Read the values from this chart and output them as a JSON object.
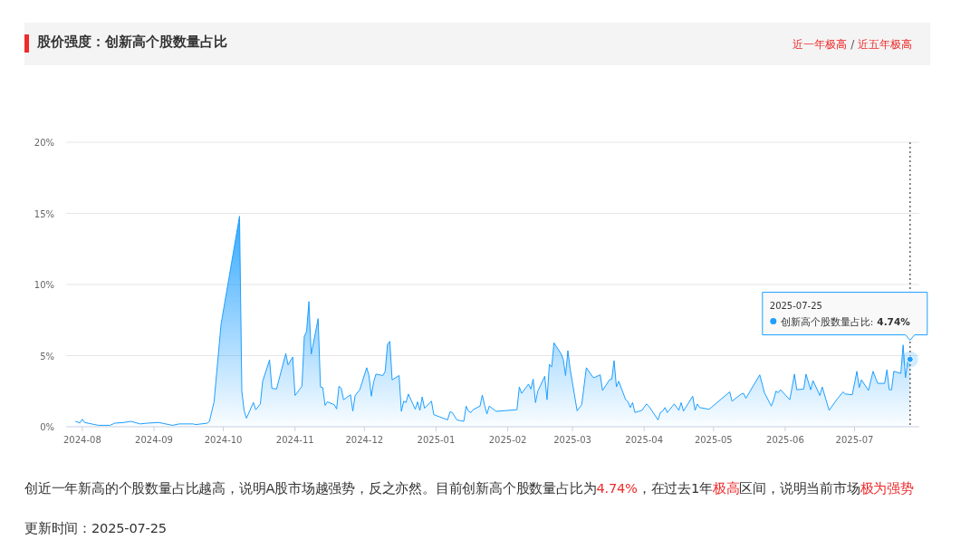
{
  "chart_data": {
    "type": "area",
    "title": "股价强度：创新高个股数量占比",
    "subtitle": "**近一年极高** / **近五年极高**",
    "x": [
      "2024-07-29",
      "2024-07-31",
      "2024-08-01",
      "2024-08-02",
      "2024-08-05",
      "2024-08-08",
      "2024-08-13",
      "2024-08-15",
      "2024-08-19",
      "2024-08-22",
      "2024-08-26",
      "2024-08-29",
      "2024-09-03",
      "2024-09-09",
      "2024-09-12",
      "2024-09-18",
      "2024-09-19",
      "2024-09-24",
      "2024-09-25",
      "2024-09-27",
      "2024-09-30",
      "2024-10-08",
      "2024-10-09",
      "2024-10-10",
      "2024-10-11",
      "2024-10-14",
      "2024-10-15",
      "2024-10-17",
      "2024-10-18",
      "2024-10-21",
      "2024-10-22",
      "2024-10-24",
      "2024-10-28",
      "2024-10-29",
      "2024-10-31",
      "2024-11-01",
      "2024-11-04",
      "2024-11-05",
      "2024-11-06",
      "2024-11-07",
      "2024-11-08",
      "2024-11-11",
      "2024-11-12",
      "2024-11-13",
      "2024-11-14",
      "2024-11-15",
      "2024-11-18",
      "2024-11-19",
      "2024-11-20",
      "2024-11-21",
      "2024-11-22",
      "2024-11-25",
      "2024-11-26",
      "2024-11-27",
      "2024-11-29",
      "2024-12-02",
      "2024-12-03",
      "2024-12-04",
      "2024-12-05",
      "2024-12-06",
      "2024-12-09",
      "2024-12-10",
      "2024-12-11",
      "2024-12-12",
      "2024-12-13",
      "2024-12-16",
      "2024-12-17",
      "2024-12-18",
      "2024-12-19",
      "2024-12-20",
      "2024-12-23",
      "2024-12-24",
      "2024-12-25",
      "2024-12-26",
      "2024-12-27",
      "2024-12-30",
      "2024-12-31",
      "2025-01-06",
      "2025-01-07",
      "2025-01-08",
      "2025-01-10",
      "2025-01-13",
      "2025-01-14",
      "2025-01-15",
      "2025-01-16",
      "2025-01-17",
      "2025-01-20",
      "2025-01-21",
      "2025-01-22",
      "2025-01-23",
      "2025-01-24",
      "2025-01-27",
      "2025-02-05",
      "2025-02-06",
      "2025-02-07",
      "2025-02-10",
      "2025-02-11",
      "2025-02-12",
      "2025-02-13",
      "2025-02-14",
      "2025-02-17",
      "2025-02-18",
      "2025-02-19",
      "2025-02-20",
      "2025-02-21",
      "2025-02-24",
      "2025-02-25",
      "2025-02-26",
      "2025-02-27",
      "2025-02-28",
      "2025-03-03",
      "2025-03-05",
      "2025-03-07",
      "2025-03-10",
      "2025-03-11",
      "2025-03-13",
      "2025-03-14",
      "2025-03-17",
      "2025-03-18",
      "2025-03-19",
      "2025-03-20",
      "2025-03-21",
      "2025-03-24",
      "2025-03-25",
      "2025-03-26",
      "2025-03-27",
      "2025-03-28",
      "2025-03-31",
      "2025-04-02",
      "2025-04-03",
      "2025-04-07",
      "2025-04-08",
      "2025-04-09",
      "2025-04-10",
      "2025-04-11",
      "2025-04-14",
      "2025-04-16",
      "2025-04-17",
      "2025-04-18",
      "2025-04-22",
      "2025-04-23",
      "2025-04-24",
      "2025-04-25",
      "2025-04-29",
      "2025-04-30",
      "2025-05-08",
      "2025-05-09",
      "2025-05-13",
      "2025-05-14",
      "2025-05-15",
      "2025-05-21",
      "2025-05-23",
      "2025-05-26",
      "2025-05-27",
      "2025-05-28",
      "2025-05-29",
      "2025-05-30",
      "2025-06-03",
      "2025-06-05",
      "2025-06-06",
      "2025-06-09",
      "2025-06-10",
      "2025-06-12",
      "2025-06-13",
      "2025-06-16",
      "2025-06-17",
      "2025-06-20",
      "2025-06-23",
      "2025-06-26",
      "2025-06-27",
      "2025-06-30",
      "2025-07-02",
      "2025-07-03",
      "2025-07-04",
      "2025-07-07",
      "2025-07-09",
      "2025-07-11",
      "2025-07-14",
      "2025-07-15",
      "2025-07-16",
      "2025-07-17",
      "2025-07-18",
      "2025-07-21",
      "2025-07-22",
      "2025-07-23",
      "2025-07-24",
      "2025-07-25"
    ],
    "series": [
      {
        "name": "创新高个股数量占比:",
        "color": "#1e9fff",
        "values": [
          0.38,
          0.27,
          0.53,
          0.3,
          0.2,
          0.1,
          0.1,
          0.25,
          0.3,
          0.38,
          0.2,
          0.25,
          0.3,
          0.1,
          0.2,
          0.2,
          0.15,
          0.25,
          0.38,
          1.76,
          7.2,
          14.8,
          2.5,
          1.12,
          0.6,
          1.7,
          1.2,
          1.6,
          3.2,
          4.7,
          2.7,
          2.65,
          5.15,
          4.35,
          4.9,
          2.2,
          2.85,
          6.35,
          6.7,
          8.8,
          5.1,
          7.6,
          2.8,
          2.75,
          1.5,
          1.75,
          1.55,
          1.25,
          2.85,
          2.7,
          1.9,
          2.25,
          1.1,
          2.2,
          2.6,
          4.15,
          3.6,
          2.15,
          3.15,
          3.7,
          3.6,
          3.9,
          5.8,
          6.0,
          3.3,
          3.6,
          1.08,
          1.8,
          1.7,
          2.3,
          1.23,
          1.75,
          1.15,
          2.1,
          1.3,
          1.8,
          0.85,
          0.48,
          1.05,
          1.0,
          0.48,
          0.38,
          1.45,
          1.1,
          1.0,
          1.2,
          1.45,
          2.23,
          1.5,
          0.9,
          1.45,
          1.08,
          1.2,
          2.8,
          2.35,
          3.0,
          2.65,
          3.35,
          1.7,
          2.5,
          3.55,
          1.9,
          4.4,
          4.2,
          5.9,
          5.15,
          4.75,
          3.6,
          5.35,
          4.05,
          1.12,
          1.55,
          4.15,
          3.45,
          3.5,
          3.65,
          2.55,
          3.3,
          3.35,
          4.65,
          2.8,
          3.2,
          1.9,
          1.75,
          1.35,
          1.7,
          1.0,
          1.15,
          1.6,
          1.45,
          0.48,
          1.0,
          1.1,
          1.35,
          1.0,
          1.6,
          1.15,
          1.7,
          1.1,
          2.15,
          1.15,
          1.6,
          1.35,
          1.23,
          1.35,
          2.45,
          1.8,
          2.3,
          2.35,
          2.0,
          3.65,
          2.4,
          1.45,
          1.9,
          2.5,
          2.4,
          2.6,
          1.9,
          3.7,
          2.6,
          2.65,
          3.7,
          2.6,
          3.25,
          2.2,
          2.8,
          1.15,
          1.85,
          2.45,
          2.3,
          2.25,
          3.9,
          2.75,
          3.3,
          2.55,
          3.9,
          3.05,
          3.05,
          4.0,
          2.6,
          2.6,
          3.9,
          3.75,
          5.75,
          3.45,
          4.6,
          4.74
        ]
      }
    ],
    "xlim": [
      "2024-07-25",
      "2025-07-29"
    ],
    "xticks": [
      {
        "value": "2024-08-01",
        "label": "2024-08"
      },
      {
        "value": "2024-09-01",
        "label": "2024-09"
      },
      {
        "value": "2024-10-01",
        "label": "2024-10"
      },
      {
        "value": "2024-11-01",
        "label": "2024-11"
      },
      {
        "value": "2024-12-01",
        "label": "2024-12"
      },
      {
        "value": "2025-01-01",
        "label": "2025-01"
      },
      {
        "value": "2025-02-01",
        "label": "2025-02"
      },
      {
        "value": "2025-03-01",
        "label": "2025-03"
      },
      {
        "value": "2025-04-01",
        "label": "2025-04"
      },
      {
        "value": "2025-05-01",
        "label": "2025-05"
      },
      {
        "value": "2025-06-01",
        "label": "2025-06"
      },
      {
        "value": "2025-07-01",
        "label": "2025-07"
      }
    ],
    "ylim": [
      0,
      20
    ],
    "yticks": [
      {
        "value": 0,
        "label": "0%"
      },
      {
        "value": 5,
        "label": "5%"
      },
      {
        "value": 10,
        "label": "10%"
      },
      {
        "value": 15,
        "label": "15%"
      },
      {
        "value": 20,
        "label": "20%"
      }
    ],
    "grid": "y",
    "marker": "none",
    "line_style": "solid",
    "legend": "right",
    "ref_lines": [
      {
        "axis": "x",
        "value": "2025-07-25",
        "color": "#666666",
        "line_style": "dotted"
      }
    ],
    "annotations": [
      "2025-07-25",
      "4.74%",
      "创近一年新高的个股数量占比越高，说明A股市场越强势，反之亦然。目前创新高个股数量占比为**4.74%**，在过去1年**极高**区间，说明当前市场**极为强势**",
      "更新时间：2025-07-25"
    ]
  }
}
